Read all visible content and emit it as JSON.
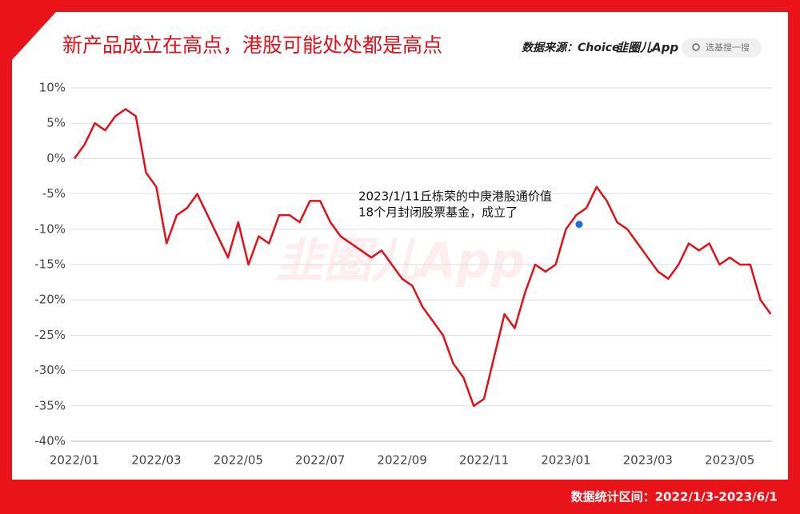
{
  "header": {
    "title": "新产品成立在高点，港股可能处处都是高点",
    "source": "数据来源：Choice",
    "logo": "韭圈儿App",
    "search": "选基搜一搜"
  },
  "footer": {
    "text": "数据统计区间：2022/1/3-2023/6/1"
  },
  "chart_data": {
    "type": "line",
    "color": "#e3101a",
    "grid": true,
    "categories": [
      "2022/01",
      null,
      null,
      null,
      null,
      null,
      null,
      null,
      "2022/03",
      null,
      null,
      null,
      null,
      null,
      null,
      null,
      "2022/05",
      null,
      null,
      null,
      null,
      null,
      null,
      null,
      "2022/07",
      null,
      null,
      null,
      null,
      null,
      null,
      null,
      "2022/09",
      null,
      null,
      null,
      null,
      null,
      null,
      null,
      "2022/11",
      null,
      null,
      null,
      null,
      null,
      null,
      null,
      "2023/01",
      null,
      null,
      null,
      null,
      null,
      null,
      null,
      "2023/03",
      null,
      null,
      null,
      null,
      null,
      null,
      null,
      "2023/05",
      null,
      null,
      null,
      null
    ],
    "values": [
      0,
      2,
      5,
      4,
      6,
      7,
      6,
      -2,
      -4,
      -12,
      -8,
      -7,
      -5,
      -8,
      -11,
      -14,
      -9,
      -15,
      -11,
      -12,
      -8,
      -8,
      -9,
      -6,
      -6,
      -9,
      -11,
      -12,
      -13,
      -14,
      -13,
      -15,
      -17,
      -18,
      -21,
      -23,
      -25,
      -29,
      -31,
      -35,
      -34,
      -28,
      -22,
      -24,
      -19,
      -15,
      -16,
      -15,
      -10,
      -8,
      -7,
      -4,
      -6,
      -9,
      -10,
      -12,
      -14,
      -16,
      -17,
      -15,
      -12,
      -13,
      -12,
      -15,
      -14,
      -15,
      -15,
      -20,
      -22
    ],
    "ylim": [
      -40,
      10
    ],
    "yticks": [
      {
        "value": -40,
        "label": "-40%"
      },
      {
        "value": -35,
        "label": "-35%"
      },
      {
        "value": -30,
        "label": "-30%"
      },
      {
        "value": -25,
        "label": "-25%"
      },
      {
        "value": -20,
        "label": "-20%"
      },
      {
        "value": -15,
        "label": "-15%"
      },
      {
        "value": -10,
        "label": "-10%"
      },
      {
        "value": -5,
        "label": "-5%"
      },
      {
        "value": 0,
        "label": "0%"
      },
      {
        "value": 5,
        "label": "5%"
      },
      {
        "value": 10,
        "label": "10%"
      }
    ],
    "annotation": {
      "date": "2023/1/11",
      "value": -9.3,
      "marker_color": "#1f6fd1",
      "lines": [
        "2023/1/11丘栋荣的中庚港股通价值",
        "18个月封闭股票基金，成立了"
      ]
    }
  }
}
